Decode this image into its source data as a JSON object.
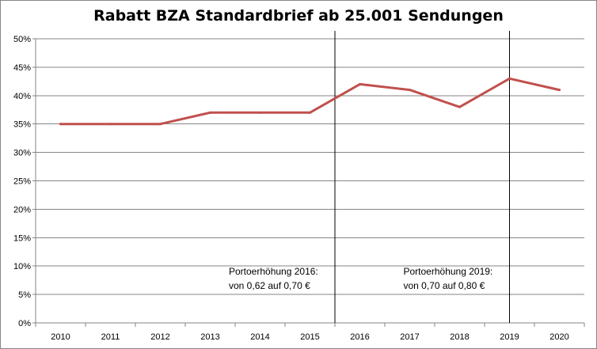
{
  "chart_data": {
    "type": "line",
    "title": "Rabatt BZA Standardbrief ab 25.001 Sendungen",
    "xlabel": "",
    "ylabel": "",
    "categories": [
      "2010",
      "2011",
      "2012",
      "2013",
      "2014",
      "2015",
      "2016",
      "2017",
      "2018",
      "2019",
      "2020"
    ],
    "series": [
      {
        "values": [
          35,
          35,
          35,
          37,
          37,
          37,
          42,
          41,
          38,
          43,
          41
        ]
      }
    ],
    "ylim": [
      0,
      50
    ],
    "yticks": [
      "0%",
      "5%",
      "10%",
      "15%",
      "20%",
      "25%",
      "30%",
      "35%",
      "40%",
      "45%",
      "50%"
    ],
    "grid": true,
    "legend": "none",
    "colors": {
      "line": "#c0504d",
      "grid": "#868686",
      "marker_line": "#000000"
    },
    "markers": [
      {
        "position": 5.5,
        "lines": [
          "Portoerhöhung 2016:",
          "von 0,62  auf 0,70 €"
        ]
      },
      {
        "position": 9,
        "lines": [
          "Portoerhöhung 2019:",
          "von 0,70  auf 0,80 €"
        ]
      }
    ]
  }
}
